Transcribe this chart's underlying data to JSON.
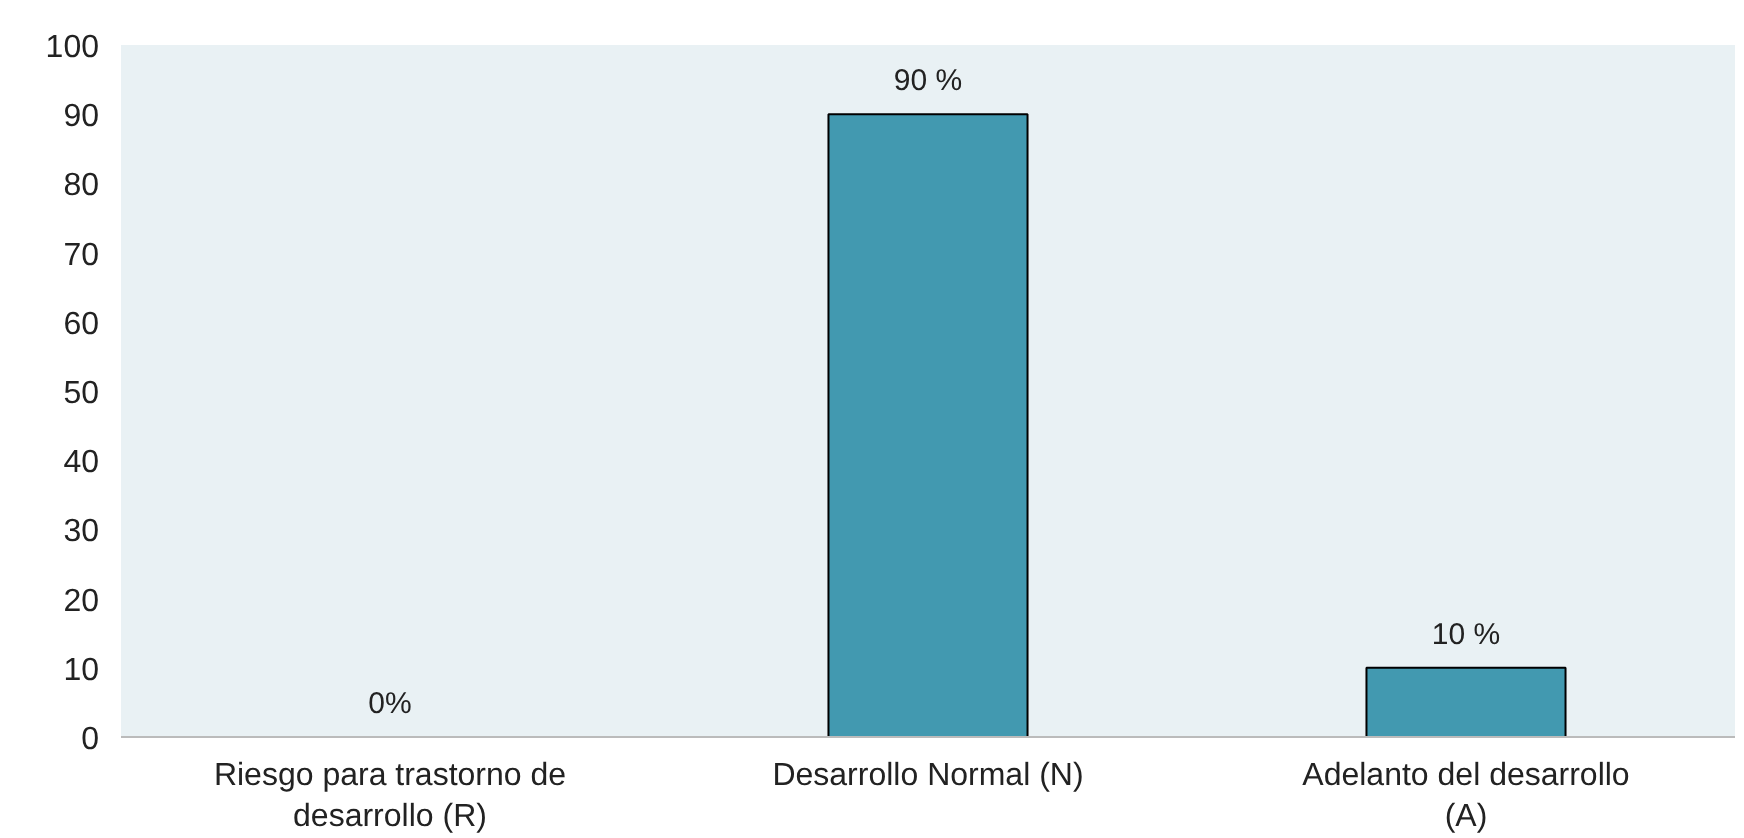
{
  "chart_data": {
    "type": "bar",
    "categories": [
      "Riesgo para trastorno de desarrollo (R)",
      "Desarrollo Normal (N)",
      "Adelanto del desarrollo (A)"
    ],
    "values": [
      0,
      90,
      10
    ],
    "value_labels": [
      "0%",
      "90 %",
      "10 %"
    ],
    "color": "#4299b0",
    "ylim": [
      0,
      100
    ],
    "yticks": [
      0,
      10,
      20,
      30,
      40,
      50,
      60,
      70,
      80,
      90,
      100
    ],
    "grid": false
  }
}
